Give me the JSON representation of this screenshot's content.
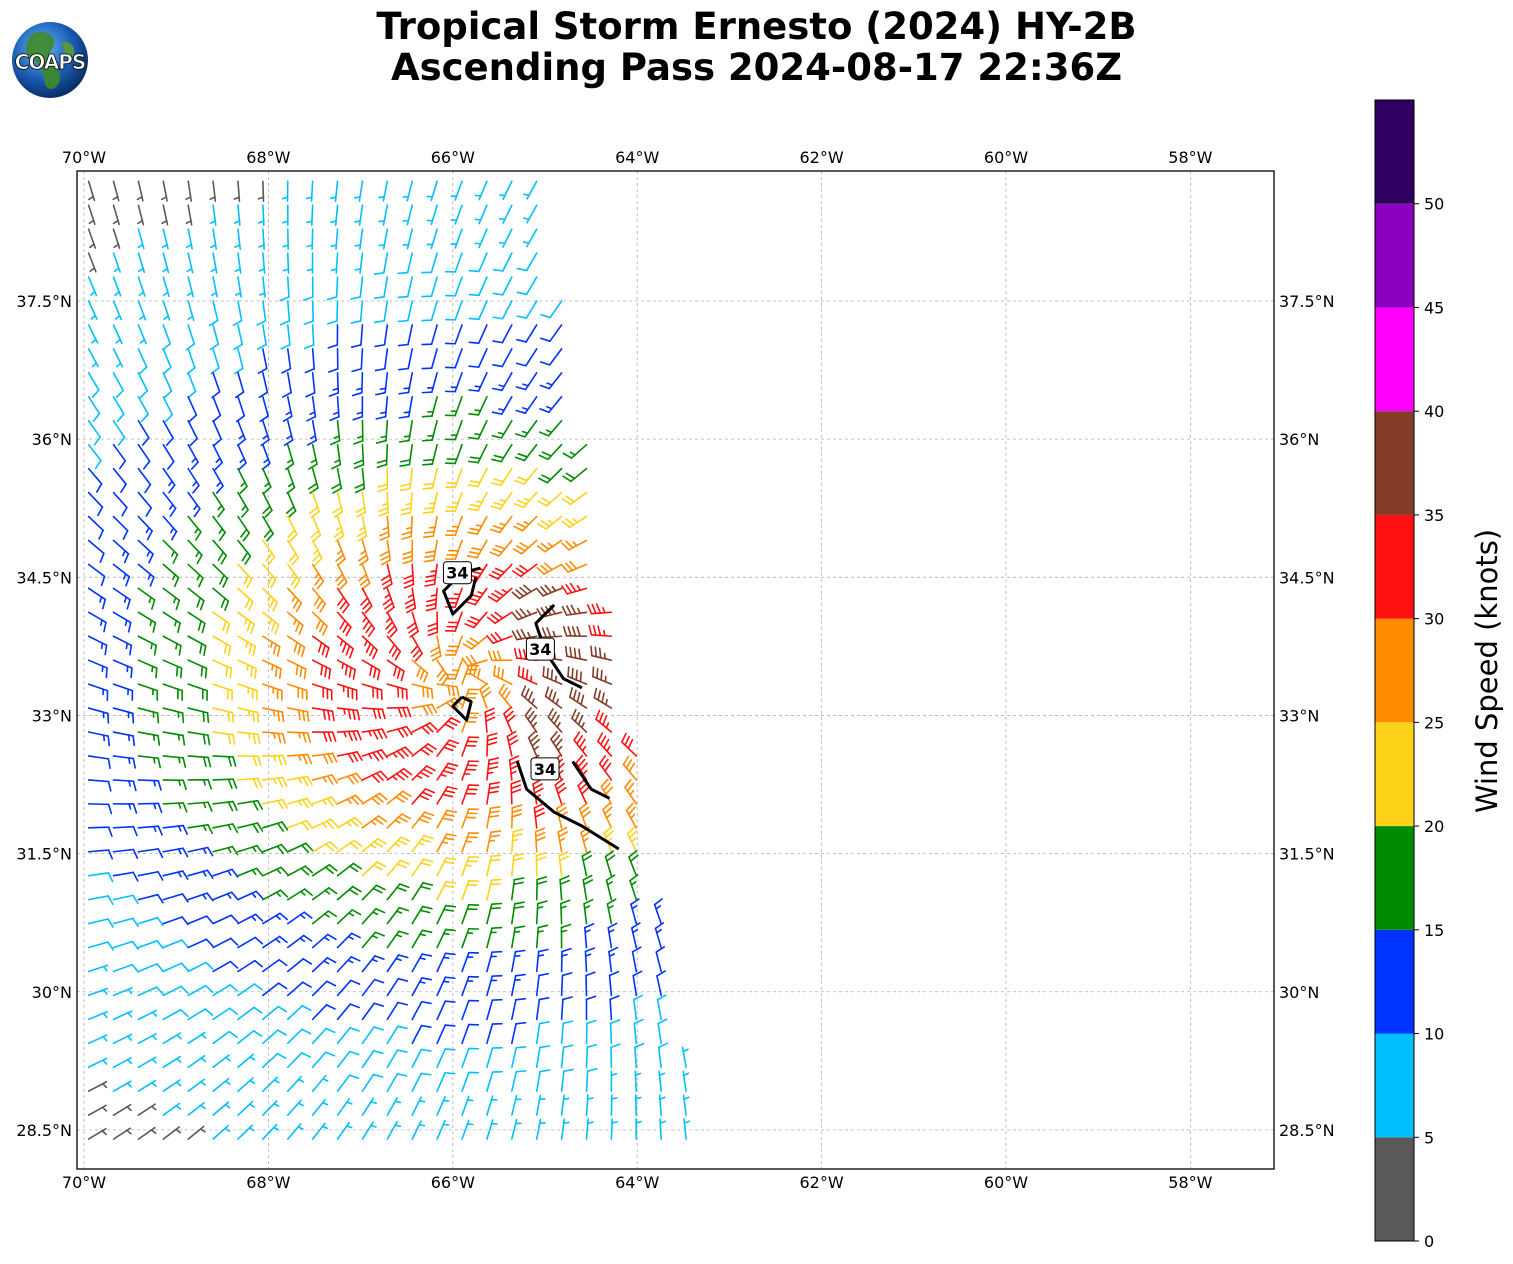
{
  "title": {
    "line1": "Tropical Storm Ernesto (2024) HY-2B",
    "line2": "Ascending Pass 2024-08-17 22:36Z"
  },
  "logo": {
    "text": "COAPS",
    "icon": "globe-logo-icon"
  },
  "map": {
    "lon_labels": [
      "70°W",
      "68°W",
      "66°W",
      "64°W",
      "62°W",
      "60°W",
      "58°W"
    ],
    "lat_labels": [
      "37.5°N",
      "36°N",
      "34.5°N",
      "33°N",
      "31.5°N",
      "30°N",
      "28.5°N"
    ],
    "lon_range": [
      -70.0,
      -57.0
    ],
    "lat_range": [
      28.1,
      38.9
    ],
    "gridlines": true,
    "storm_center": {
      "lon": -65.9,
      "lat": 33.4
    },
    "swath_edge_lon_at_top": -65.0,
    "swath_edge_lon_at_bottom": -63.3,
    "contour_value": "34",
    "contours": [
      [
        [
          -65.7,
          34.6
        ],
        [
          -65.9,
          34.55
        ],
        [
          -66.1,
          34.35
        ],
        [
          -66.0,
          34.1
        ],
        [
          -65.8,
          34.3
        ],
        [
          -65.75,
          34.5
        ]
      ],
      [
        [
          -64.9,
          34.2
        ],
        [
          -65.1,
          34.0
        ],
        [
          -65.0,
          33.7
        ],
        [
          -64.8,
          33.4
        ],
        [
          -64.6,
          33.3
        ]
      ],
      [
        [
          -65.9,
          33.2
        ],
        [
          -66.0,
          33.1
        ],
        [
          -65.85,
          32.95
        ],
        [
          -65.8,
          33.15
        ],
        [
          -65.9,
          33.2
        ]
      ],
      [
        [
          -65.3,
          32.5
        ],
        [
          -65.2,
          32.2
        ],
        [
          -64.9,
          31.95
        ],
        [
          -64.6,
          31.8
        ],
        [
          -64.2,
          31.55
        ]
      ],
      [
        [
          -64.7,
          32.5
        ],
        [
          -64.5,
          32.2
        ],
        [
          -64.3,
          32.1
        ]
      ]
    ],
    "contour_labels": [
      {
        "text": "34",
        "lon": -65.95,
        "lat": 34.55
      },
      {
        "text": "34",
        "lon": -65.05,
        "lat": 33.72
      },
      {
        "text": "34",
        "lon": -65.0,
        "lat": 32.42
      }
    ]
  },
  "colorbar": {
    "label": "Wind Speed (knots)",
    "ticks": [
      "0",
      "5",
      "10",
      "15",
      "20",
      "25",
      "30",
      "35",
      "40",
      "45",
      "50"
    ],
    "max": 55,
    "colors": [
      "#595959",
      "#00bfff",
      "#0033ff",
      "#008c00",
      "#ffd21a",
      "#ff8c00",
      "#ff1111",
      "#843c28",
      "#ff00ff",
      "#8a00bf",
      "#300060"
    ]
  }
}
